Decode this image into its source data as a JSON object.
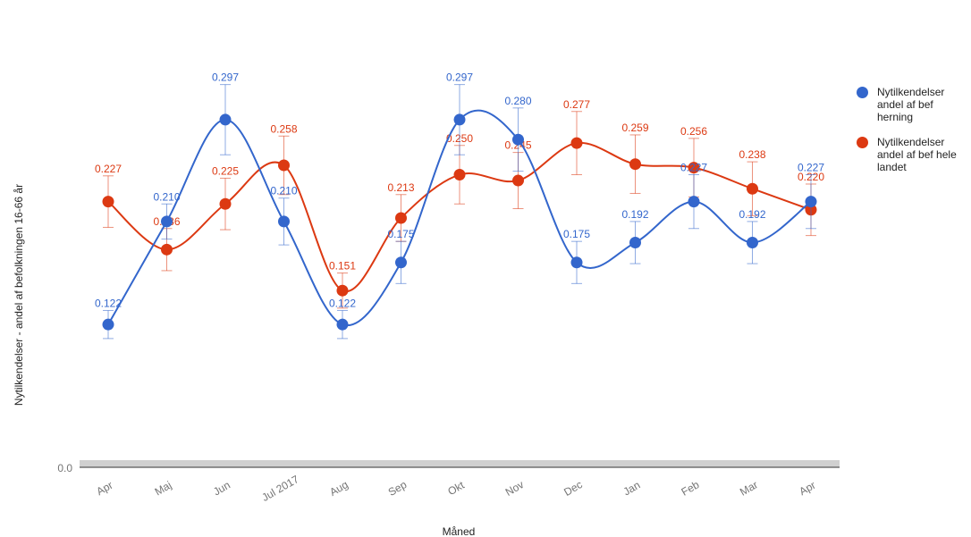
{
  "chart_data": {
    "type": "line",
    "xlabel": "Måned",
    "ylabel": "Nytilkendelser - andel af befolkningen 16-66 år",
    "ylim": [
      0,
      0.37
    ],
    "y_tick_labels": [
      "0.0"
    ],
    "categories": [
      "Apr",
      "Maj",
      "Jun",
      "Jul 2017",
      "Aug",
      "Sep",
      "Okt",
      "Nov",
      "Dec",
      "Jan",
      "Feb",
      "Mar",
      "Apr"
    ],
    "legend_position": "right",
    "grid": false,
    "smooth": true,
    "series": [
      {
        "name": "Nytilkendelser andel af bef herning",
        "color": "#3366cc",
        "values": [
          0.122,
          0.21,
          0.297,
          0.21,
          0.122,
          0.175,
          0.297,
          0.28,
          0.175,
          0.192,
          0.227,
          0.192,
          0.227
        ],
        "labels": [
          "0.122",
          "0.210",
          "0.297",
          "0.210",
          "0.122",
          "0.175",
          "0.297",
          "0.280",
          "0.175",
          "0.192",
          "0.227",
          "0.192",
          "0.227"
        ],
        "error": [
          0.012,
          0.015,
          0.03,
          0.02,
          0.012,
          0.018,
          0.03,
          0.027,
          0.018,
          0.018,
          0.023,
          0.018,
          0.023
        ]
      },
      {
        "name": "Nytilkendelser andel af bef hele landet",
        "color": "#dc3912",
        "values": [
          0.227,
          0.186,
          0.225,
          0.258,
          0.151,
          0.213,
          0.25,
          0.245,
          0.277,
          0.259,
          0.256,
          0.238,
          0.22
        ],
        "labels": [
          "0.227",
          "0.186",
          "0.225",
          "0.258",
          "0.151",
          "0.213",
          "0.250",
          "0.245",
          "0.277",
          "0.259",
          "0.256",
          "0.238",
          "0.220"
        ],
        "error": [
          0.022,
          0.018,
          0.022,
          0.025,
          0.015,
          0.02,
          0.025,
          0.024,
          0.027,
          0.025,
          0.025,
          0.023,
          0.022
        ]
      }
    ]
  }
}
